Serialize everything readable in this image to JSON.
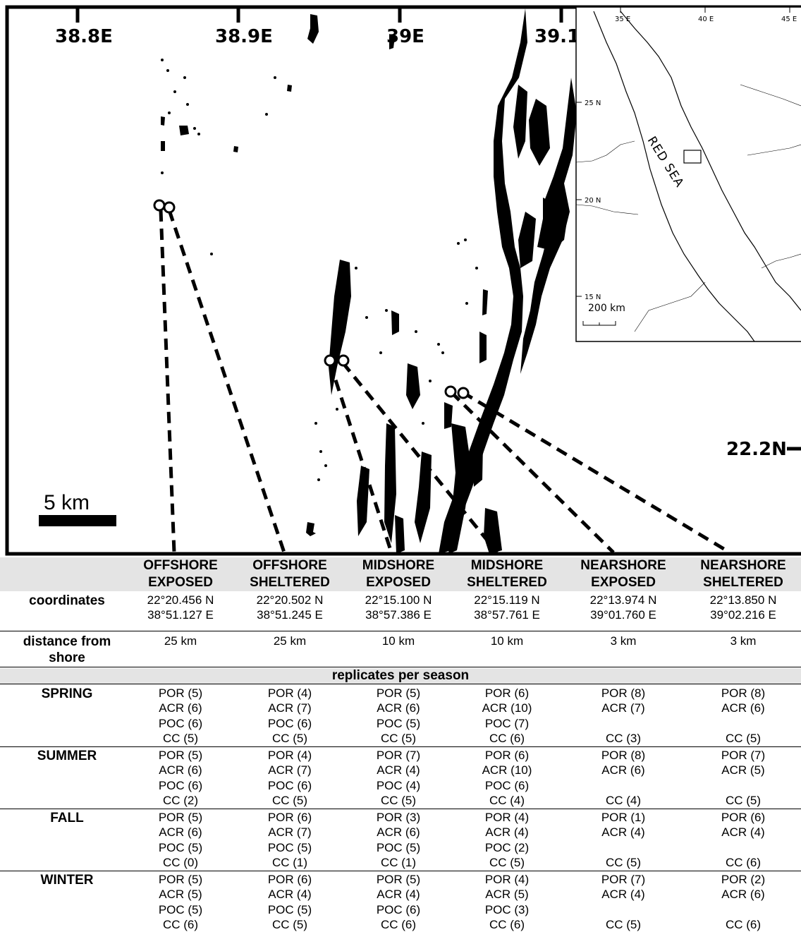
{
  "map": {
    "lon_ticks": [
      "38.8E",
      "38.9E",
      "39E",
      "39.1"
    ],
    "lat_tick": "22.2N",
    "scale_bar": "5 km",
    "inset": {
      "lon_ticks": [
        "35 E",
        "40 E",
        "45 E"
      ],
      "lat_ticks": [
        "25 N",
        "20 N",
        "15 N"
      ],
      "sea_label": "RED SEA",
      "scale": "200 km"
    }
  },
  "table": {
    "sites": [
      {
        "line1": "OFFSHORE",
        "line2": "EXPOSED",
        "lat": "22°20.456 N",
        "lon": "38°51.127 E",
        "distance": "25 km"
      },
      {
        "line1": "OFFSHORE",
        "line2": "SHELTERED",
        "lat": "22°20.502 N",
        "lon": "38°51.245 E",
        "distance": "25 km"
      },
      {
        "line1": "MIDSHORE",
        "line2": "EXPOSED",
        "lat": "22°15.100 N",
        "lon": "38°57.386 E",
        "distance": "10 km"
      },
      {
        "line1": "MIDSHORE",
        "line2": "SHELTERED",
        "lat": "22°15.119 N",
        "lon": "38°57.761 E",
        "distance": "10 km"
      },
      {
        "line1": "NEARSHORE",
        "line2": "EXPOSED",
        "lat": "22°13.974 N",
        "lon": "39°01.760 E",
        "distance": "3 km"
      },
      {
        "line1": "NEARSHORE",
        "line2": "SHELTERED",
        "lat": "22°13.850 N",
        "lon": "39°02.216 E",
        "distance": "3 km"
      }
    ],
    "coordinates_label": "coordinates",
    "distance_label_1": "distance from",
    "distance_label_2": "shore",
    "replicates_title": "replicates per season",
    "seasons": [
      {
        "name": "SPRING",
        "cells": [
          [
            "POR (5)",
            "ACR (6)",
            "POC (6)",
            "CC (5)"
          ],
          [
            "POR (4)",
            "ACR (7)",
            "POC (6)",
            "CC (5)"
          ],
          [
            "POR (5)",
            "ACR (6)",
            "POC (5)",
            "CC (5)"
          ],
          [
            "POR (6)",
            "ACR (10)",
            "POC (7)",
            "CC (6)"
          ],
          [
            "POR (8)",
            "ACR (7)",
            "",
            "CC (3)"
          ],
          [
            "POR (8)",
            "ACR (6)",
            "",
            "CC (5)"
          ]
        ]
      },
      {
        "name": "SUMMER",
        "cells": [
          [
            "POR (5)",
            "ACR (6)",
            "POC (6)",
            "CC (2)"
          ],
          [
            "POR (4)",
            "ACR (7)",
            "POC (6)",
            "CC (5)"
          ],
          [
            "POR (7)",
            "ACR (4)",
            "POC (4)",
            "CC (5)"
          ],
          [
            "POR (6)",
            "ACR (10)",
            "POC (6)",
            "CC (4)"
          ],
          [
            "POR (8)",
            "ACR (6)",
            "",
            "CC (4)"
          ],
          [
            "POR (7)",
            "ACR (5)",
            "",
            "CC (5)"
          ]
        ]
      },
      {
        "name": "FALL",
        "cells": [
          [
            "POR (5)",
            "ACR (6)",
            "POC (5)",
            "CC (0)"
          ],
          [
            "POR (6)",
            "ACR (7)",
            "POC (5)",
            "CC (1)"
          ],
          [
            "POR (3)",
            "ACR (6)",
            "POC (5)",
            "CC (1)"
          ],
          [
            "POR (4)",
            "ACR (4)",
            "POC (2)",
            "CC (5)"
          ],
          [
            "POR (1)",
            "ACR (4)",
            "",
            "CC (5)"
          ],
          [
            "POR (6)",
            "ACR (4)",
            "",
            "CC (6)"
          ]
        ]
      },
      {
        "name": "WINTER",
        "cells": [
          [
            "POR (5)",
            "ACR (5)",
            "POC (5)",
            "CC (6)"
          ],
          [
            "POR (6)",
            "ACR (4)",
            "POC (5)",
            "CC (5)"
          ],
          [
            "POR (5)",
            "ACR (4)",
            "POC (6)",
            "CC (6)"
          ],
          [
            "POR (4)",
            "ACR (5)",
            "POC (3)",
            "CC (6)"
          ],
          [
            "POR (7)",
            "ACR (4)",
            "",
            "CC (5)"
          ],
          [
            "POR (2)",
            "ACR (6)",
            "",
            "CC (6)"
          ]
        ]
      }
    ]
  }
}
